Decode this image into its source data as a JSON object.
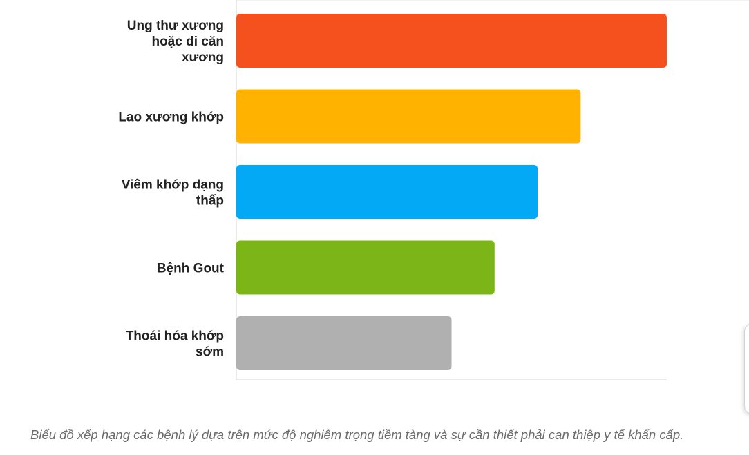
{
  "chart_data": {
    "type": "bar",
    "orientation": "horizontal",
    "categories": [
      [
        "Ung thư xương",
        "hoặc di căn",
        "xương"
      ],
      [
        "Lao xương khớp"
      ],
      [
        "Viêm khớp dạng",
        "thấp"
      ],
      [
        "Bệnh Gout"
      ],
      [
        "Thoái hóa khớp",
        "sớm"
      ]
    ],
    "values": [
      100,
      80,
      70,
      60,
      50
    ],
    "colors": [
      "#f4511e",
      "#ffb300",
      "#03a9f4",
      "#7cb518",
      "#b0b0b0"
    ],
    "xlim": [
      0,
      100
    ],
    "grid": false,
    "legend": "none",
    "caption": "Biểu đồ xếp hạng các bệnh lý dựa trên mức độ nghiêm trọng tiềm tàng và sự cần thiết phải can thiệp y tế khẩn cấp."
  }
}
